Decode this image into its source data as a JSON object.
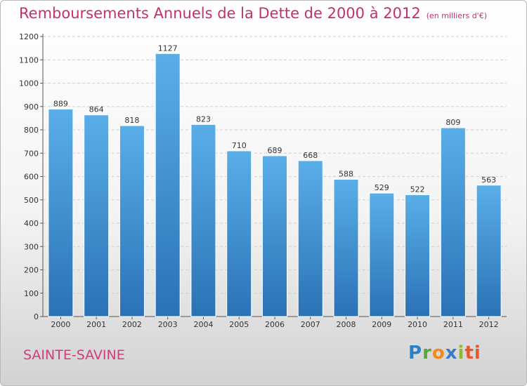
{
  "header": {
    "title": "Remboursements Annuels de la Dette de 2000 à 2012",
    "unit": "(en milliers d'€)"
  },
  "footer": {
    "city": "SAINTE-SAVINE",
    "logo_letters": [
      "P",
      "r",
      "o",
      "x",
      "i",
      "ti"
    ]
  },
  "colors": {
    "bar_top": "#5aaee8",
    "bar_bottom": "#2a72b5",
    "title": "#c2306e",
    "grid": "#cfcfcf"
  },
  "chart_data": {
    "type": "bar",
    "title": "Remboursements Annuels de la Dette de 2000 à 2012",
    "subtitle": "(en milliers d'€)",
    "categories": [
      "2000",
      "2001",
      "2002",
      "2003",
      "2004",
      "2005",
      "2006",
      "2007",
      "2008",
      "2009",
      "2010",
      "2011",
      "2012"
    ],
    "values": [
      889,
      864,
      818,
      1127,
      823,
      710,
      689,
      668,
      588,
      529,
      522,
      809,
      563
    ],
    "value_labels": [
      "889",
      "864",
      "818",
      "1127",
      "823",
      "710",
      "689",
      "668",
      "588",
      "529",
      "522",
      "809",
      "563"
    ],
    "ylim": [
      0,
      1200
    ],
    "yticks": [
      0,
      100,
      200,
      300,
      400,
      500,
      600,
      700,
      800,
      900,
      1000,
      1100,
      1200
    ],
    "grid": "horizontal-dashed",
    "xlabel": "",
    "ylabel": ""
  }
}
